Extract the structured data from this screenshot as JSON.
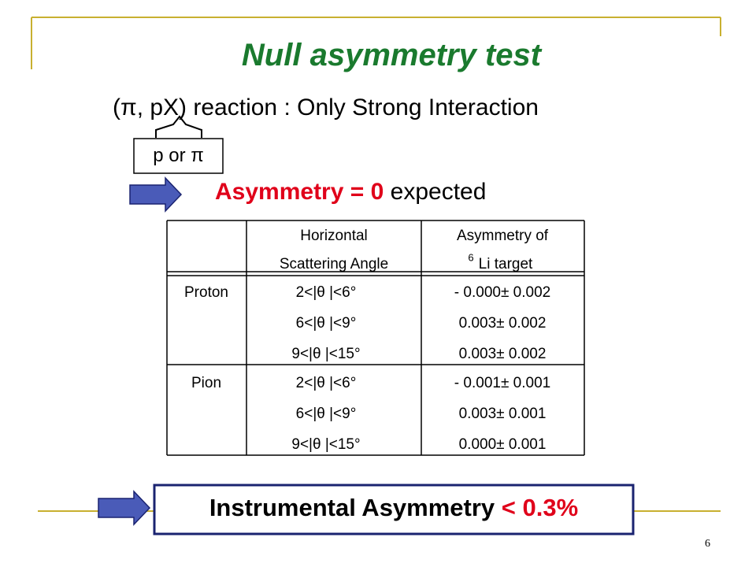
{
  "title": "Null asymmetry test",
  "subtitle": "(π, pX) reaction : Only Strong Interaction",
  "projectile_label": "p or π",
  "expectation": {
    "emphasis": "Asymmetry = 0",
    "text": "expected"
  },
  "table": {
    "header": {
      "angle": [
        "Horizontal",
        "Scattering Angle"
      ],
      "asymmetry": [
        "Asymmetry of",
        "6",
        "Li target"
      ]
    },
    "groups": [
      {
        "name": "Proton",
        "rows": [
          [
            "2<|θ |<6°",
            "- 0.000± 0.002"
          ],
          [
            "6<|θ |<9°",
            "0.003± 0.002"
          ],
          [
            "9<|θ |<15°",
            "0.003± 0.002"
          ]
        ]
      },
      {
        "name": "Pion",
        "rows": [
          [
            "2<|θ |<6°",
            "- 0.001± 0.001"
          ],
          [
            "6<|θ |<9°",
            "0.003± 0.001"
          ],
          [
            "9<|θ |<15°",
            "0.000± 0.001"
          ]
        ]
      }
    ]
  },
  "conclusion": {
    "text": "Instrumental Asymmetry",
    "emphasis": "< 0.3%"
  },
  "page_number": "6"
}
